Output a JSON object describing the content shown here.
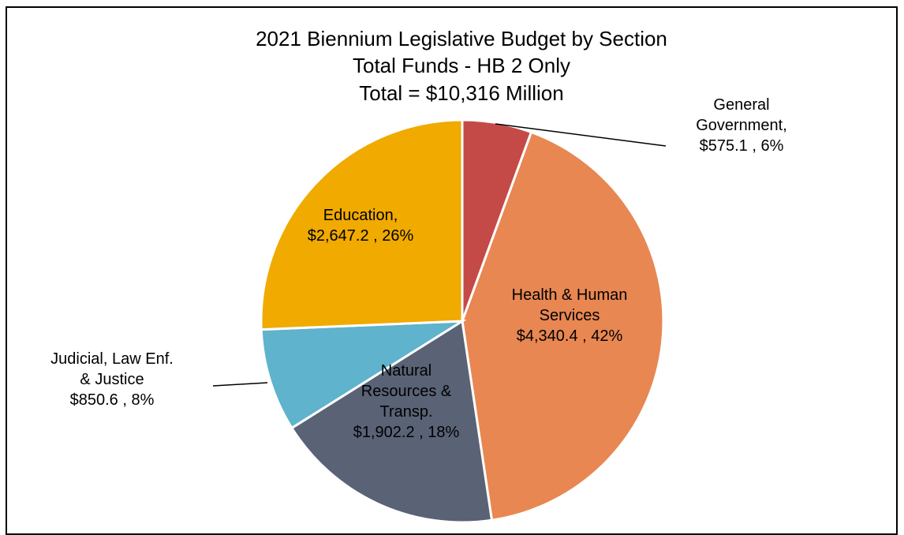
{
  "chart_data": {
    "type": "pie",
    "title_lines": [
      "2021 Biennium Legislative Budget by Section",
      "Total Funds - HB 2 Only",
      "Total = $10,316 Million"
    ],
    "slices": [
      {
        "name": "General Government",
        "value": 575.1,
        "percent": 6,
        "color": "#c44a48",
        "label_lines": [
          "General",
          "Government,",
          "$575.1 , 6%"
        ]
      },
      {
        "name": "Health & Human Services",
        "value": 4340.4,
        "percent": 42,
        "color": "#e88752",
        "label_lines": [
          "Health & Human",
          "Services",
          "$4,340.4 , 42%"
        ]
      },
      {
        "name": "Natural Resources & Transp.",
        "value": 1902.2,
        "percent": 18,
        "color": "#5a6276",
        "label_lines": [
          "Natural",
          "Resources &",
          "Transp.",
          "$1,902.2 , 18%"
        ]
      },
      {
        "name": "Judicial, Law Enf. & Justice",
        "value": 850.6,
        "percent": 8,
        "color": "#5fb3cc",
        "label_lines": [
          "Judicial, Law Enf.",
          "& Justice",
          "$850.6 , 8%"
        ]
      },
      {
        "name": "Education",
        "value": 2647.2,
        "percent": 26,
        "color": "#f0aa00",
        "label_lines": [
          "Education,",
          "$2,647.2 , 26%"
        ]
      }
    ]
  }
}
